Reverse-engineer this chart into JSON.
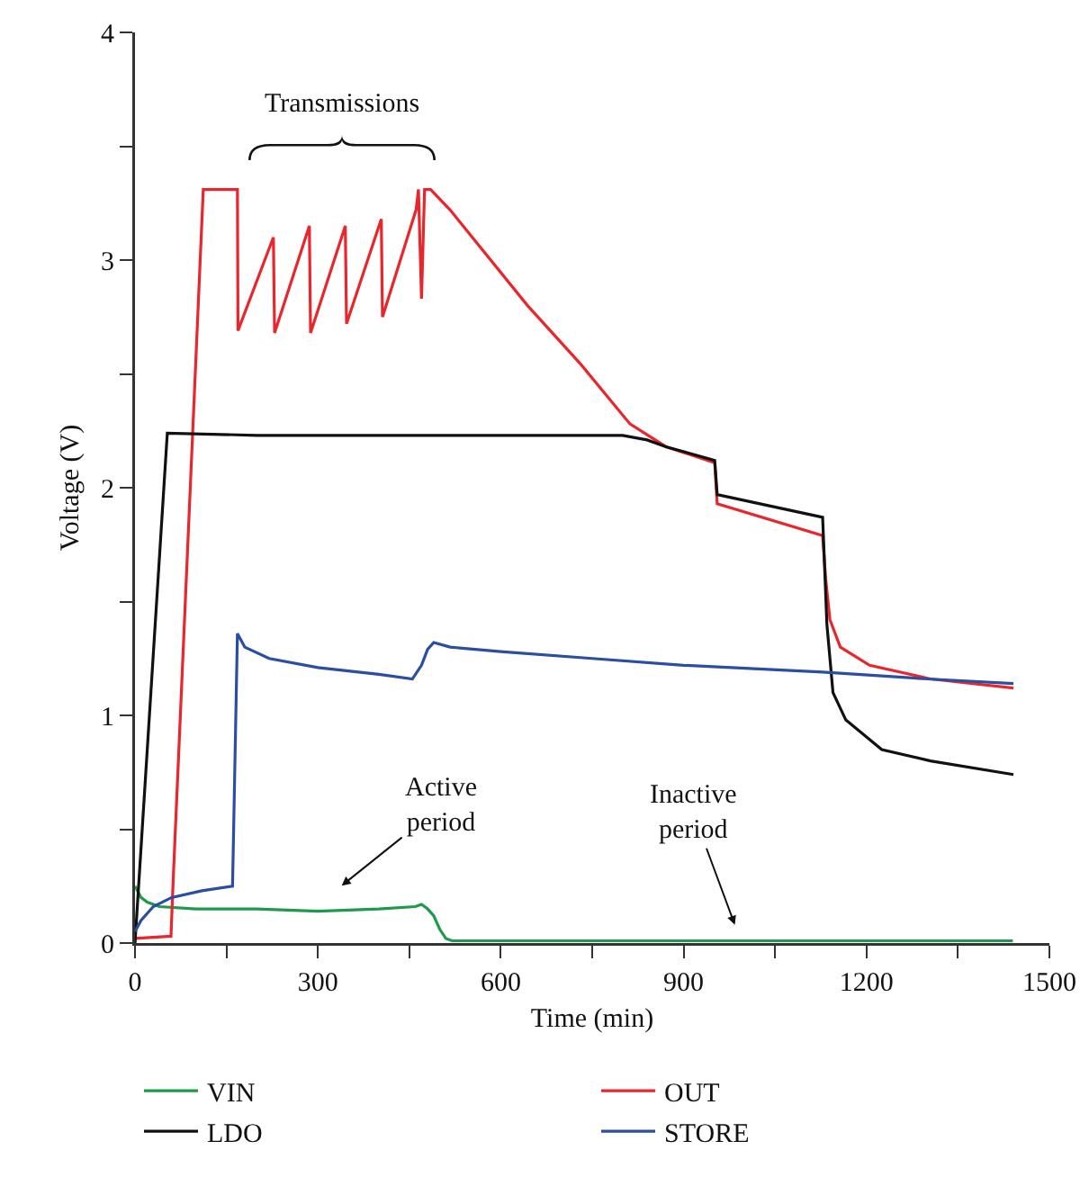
{
  "chart_data": {
    "type": "line",
    "xlabel": "Time (min)",
    "ylabel": "Voltage (V)",
    "xlim": [
      0,
      1500
    ],
    "ylim": [
      0,
      4
    ],
    "xticks": [
      0,
      {
        "value": 150,
        "label": null
      },
      300,
      {
        "value": 450,
        "label": null
      },
      600,
      {
        "value": 750,
        "label": null
      },
      900,
      {
        "value": 1050,
        "label": null
      },
      1200,
      {
        "value": 1350,
        "label": null
      },
      1500
    ],
    "yticks": [
      0,
      {
        "value": 0.5,
        "label": null
      },
      1,
      {
        "value": 1.5,
        "label": null
      },
      2,
      {
        "value": 2.5,
        "label": null
      },
      3,
      {
        "value": 3.5,
        "label": null
      },
      4
    ],
    "grid": false,
    "legend": "bottom",
    "marker": "none",
    "line_style": "solid",
    "series": [
      {
        "name": "VIN",
        "color": "#1e9a4a",
        "x": [
          0,
          10,
          20,
          40,
          100,
          200,
          300,
          400,
          460,
          470,
          480,
          490,
          500,
          510,
          520,
          600,
          800,
          1000,
          1200,
          1440
        ],
        "values": [
          0.25,
          0.2,
          0.18,
          0.16,
          0.15,
          0.15,
          0.14,
          0.15,
          0.16,
          0.17,
          0.15,
          0.12,
          0.06,
          0.02,
          0.01,
          0.01,
          0.01,
          0.01,
          0.01,
          0.01
        ]
      },
      {
        "name": "OUT",
        "color": "#e8262b",
        "x": [
          0,
          59,
          63,
          112,
          168,
          169,
          227,
          229,
          286,
          288,
          345,
          347,
          404,
          406,
          461,
          465,
          470,
          475,
          485,
          517,
          644,
          732,
          812,
          871,
          951,
          955,
          1128,
          1133,
          1140,
          1157,
          1205,
          1305,
          1441
        ],
        "values": [
          0.02,
          0.03,
          0.3,
          3.31,
          3.31,
          2.69,
          3.1,
          2.68,
          3.15,
          2.68,
          3.15,
          2.72,
          3.18,
          2.75,
          3.22,
          3.31,
          2.83,
          3.31,
          3.31,
          3.22,
          2.8,
          2.54,
          2.28,
          2.18,
          2.11,
          1.93,
          1.79,
          1.6,
          1.42,
          1.3,
          1.22,
          1.16,
          1.12
        ]
      },
      {
        "name": "LDO",
        "color": "#111111",
        "x": [
          0,
          53,
          200,
          400,
          600,
          800,
          840,
          871,
          951,
          955,
          1128,
          1135,
          1145,
          1166,
          1225,
          1305,
          1441
        ],
        "values": [
          0,
          2.24,
          2.23,
          2.23,
          2.23,
          2.23,
          2.21,
          2.18,
          2.12,
          1.97,
          1.87,
          1.4,
          1.1,
          0.98,
          0.85,
          0.8,
          0.74
        ]
      },
      {
        "name": "STORE",
        "color": "#2b4ea2",
        "x": [
          0,
          10,
          30,
          60,
          110,
          160,
          168,
          180,
          220,
          300,
          400,
          455,
          470,
          480,
          490,
          517,
          600,
          750,
          900,
          1128,
          1300,
          1441
        ],
        "values": [
          0.05,
          0.1,
          0.16,
          0.2,
          0.23,
          0.25,
          1.36,
          1.3,
          1.25,
          1.21,
          1.18,
          1.16,
          1.22,
          1.29,
          1.32,
          1.3,
          1.28,
          1.25,
          1.22,
          1.19,
          1.16,
          1.14
        ]
      }
    ],
    "annotations": [
      "Transmissions",
      "Active period",
      "Inactive period"
    ]
  }
}
